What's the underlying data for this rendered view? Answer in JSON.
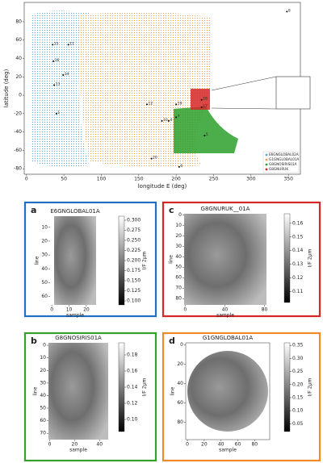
{
  "chart_data": [
    {
      "type": "map",
      "xlabel": "longitude E (deg)",
      "ylabel": "latitude (deg)",
      "xlim": [
        -3,
        366
      ],
      "ylim": [
        -86,
        101
      ],
      "xticks": [
        0,
        50,
        100,
        150,
        200,
        250,
        300,
        350
      ],
      "yticks": [
        -80,
        -60,
        -40,
        -20,
        0,
        20,
        40,
        60,
        80
      ],
      "legend_position": "lower right",
      "legend": [
        {
          "name": "E6GNGLOBAL02A",
          "color": "#5aa6d6"
        },
        {
          "name": "G1GNGLOBAL01A",
          "color": "#f0a050"
        },
        {
          "name": "G8GNOSIRIS01A",
          "color": "#2ca02c"
        },
        {
          "name": "G8GNURUK",
          "color": "#d62728"
        }
      ],
      "sites": [
        {
          "label": "15",
          "x": 35,
          "y": 55
        },
        {
          "label": "11",
          "x": 56,
          "y": 55
        },
        {
          "label": "16",
          "x": 36,
          "y": 37
        },
        {
          "label": "14",
          "x": 49,
          "y": 22
        },
        {
          "label": "13",
          "x": 37,
          "y": 11
        },
        {
          "label": "1",
          "x": 40,
          "y": -20
        },
        {
          "label": "12",
          "x": 161,
          "y": -10
        },
        {
          "label": "19",
          "x": 200,
          "y": -10
        },
        {
          "label": "18",
          "x": 234,
          "y": -5
        },
        {
          "label": "17",
          "x": 234,
          "y": -13
        },
        {
          "label": "7",
          "x": 200,
          "y": -24
        },
        {
          "label": "10",
          "x": 181,
          "y": -28
        },
        {
          "label": "4",
          "x": 190,
          "y": -28
        },
        {
          "label": "5",
          "x": 238,
          "y": -44
        },
        {
          "label": "20",
          "x": 167,
          "y": -69
        },
        {
          "label": "6",
          "x": 204,
          "y": -78
        },
        {
          "label": "8",
          "x": 348,
          "y": 91
        }
      ]
    },
    {
      "type": "image",
      "letter": "a",
      "color": "#1f6fc2",
      "title": "E6GNGLOBAL01A",
      "xlabel": "sample",
      "ylabel": "line",
      "xlim": [
        -1,
        28
      ],
      "ylim": [
        66,
        2
      ],
      "xticks": [
        0,
        10,
        20
      ],
      "yticks": [
        10,
        20,
        30,
        40,
        50,
        60
      ],
      "colorbar": {
        "label": "I/F 2μm",
        "lim": [
          0.09,
          0.31
        ],
        "ticks": [
          {
            "value": 0.3,
            "label": "0.300"
          },
          0.275,
          {
            "value": 0.25,
            "label": "0.250"
          },
          0.225,
          {
            "value": 0.2,
            "label": "0.200"
          },
          0.175,
          {
            "value": 0.15,
            "label": "0.150"
          },
          0.125,
          {
            "value": 0.1,
            "label": "0.100"
          }
        ]
      }
    },
    {
      "type": "image",
      "letter": "b",
      "color": "#33a02c",
      "title": "G8GNOSIRIS01A",
      "xlabel": "sample",
      "ylabel": "line",
      "xlim": [
        -1,
        47
      ],
      "ylim": [
        75,
        -2
      ],
      "xticks": [
        0,
        20,
        40
      ],
      "yticks": [
        0,
        10,
        20,
        30,
        40,
        50,
        60,
        70
      ],
      "colorbar": {
        "label": "I/F 2μm",
        "lim": [
          0.085,
          0.195
        ],
        "ticks": [
          0.18,
          0.16,
          0.14,
          0.12,
          {
            "value": 0.1,
            "label": "0.10"
          }
        ]
      }
    },
    {
      "type": "image",
      "letter": "c",
      "color": "#d62728",
      "title": "G8GNURUK__01A",
      "xlabel": "sample",
      "ylabel": "line",
      "xlim": [
        -1,
        82
      ],
      "ylim": [
        86,
        -1
      ],
      "xticks": [
        0,
        40,
        80
      ],
      "yticks": [
        0,
        10,
        20,
        30,
        40,
        50,
        60,
        70,
        80
      ],
      "colorbar": {
        "label": "I/F 2μm",
        "lim": [
          0.102,
          0.167
        ],
        "ticks": [
          0.16,
          0.15,
          0.14,
          0.13,
          0.12,
          0.11
        ]
      }
    },
    {
      "type": "image",
      "letter": "d",
      "color": "#f08a24",
      "title": "G1GNGLOBAL01A",
      "xlabel": "sample",
      "ylabel": "line",
      "xlim": [
        -2,
        98
      ],
      "ylim": [
        98,
        -2
      ],
      "xticks": [
        0,
        20,
        40,
        60,
        80
      ],
      "yticks": [
        0,
        20,
        40,
        60,
        80
      ],
      "colorbar": {
        "label": "I/F 2μm",
        "lim": [
          0.02,
          0.36
        ],
        "ticks": [
          0.35,
          {
            "value": 0.3,
            "label": "0.30"
          },
          0.25,
          {
            "value": 0.2,
            "label": "0.20"
          },
          0.15,
          {
            "value": 0.1,
            "label": "0.10"
          },
          0.05
        ]
      }
    }
  ]
}
